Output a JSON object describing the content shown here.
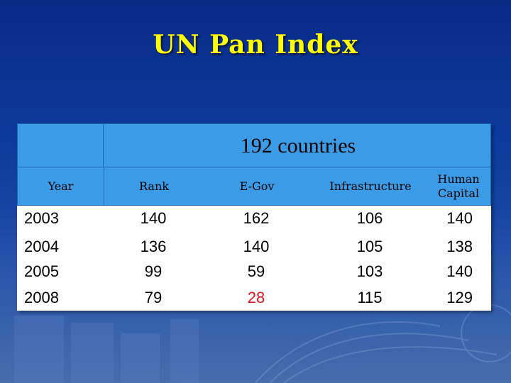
{
  "title": "UN Pan Index",
  "table": {
    "group_header": "192 countries",
    "columns": [
      "Year",
      "Rank",
      "E-Gov",
      "Infrastructure",
      "Human\nCapital"
    ],
    "rows": [
      {
        "year": "2003",
        "rank": "140",
        "egov": "162",
        "infra": "106",
        "human": "140"
      },
      {
        "year": "2004",
        "rank": "136",
        "egov": "140",
        "infra": "105",
        "human": "138"
      },
      {
        "year": "2005",
        "rank": "99",
        "egov": "59",
        "infra": "103",
        "human": "140"
      },
      {
        "year": "2008",
        "rank": "79",
        "egov": "28",
        "infra": "115",
        "human": "129"
      }
    ],
    "highlight_color": "#e0141d"
  },
  "colors": {
    "title": "#ffff00",
    "header_fill": "#3b9be6",
    "background": "#0c3a9c"
  }
}
